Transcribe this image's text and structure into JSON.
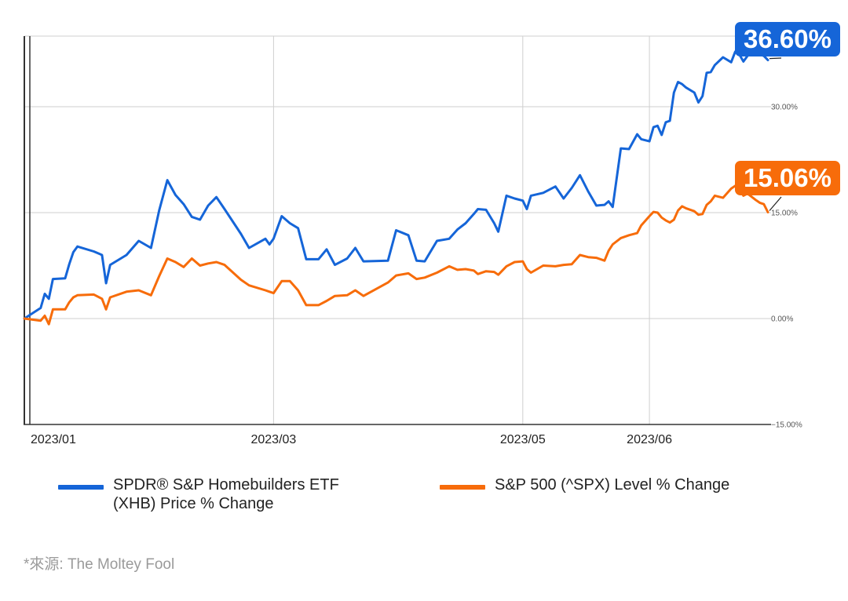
{
  "chart_data": {
    "type": "line",
    "title": "",
    "xlabel": "",
    "ylabel": "",
    "ylim": [
      -15,
      40
    ],
    "y_ticks": [
      {
        "value": 30,
        "label": "30.00%"
      },
      {
        "value": 15,
        "label": "15.00%"
      },
      {
        "value": 0,
        "label": "0.00%"
      },
      {
        "value": -15,
        "label": "−15.00%"
      }
    ],
    "x_ticks": [
      {
        "date": "2023-01-03",
        "label": "2023/01"
      },
      {
        "date": "2023-03-01",
        "label": "2023/03"
      },
      {
        "date": "2023-05-01",
        "label": "2023/05"
      },
      {
        "date": "2023-06-01",
        "label": "2023/06"
      }
    ],
    "x_range": [
      "2022-12-30",
      "2023-06-30"
    ],
    "grid": true,
    "legend_position": "bottom",
    "series": [
      {
        "name": "SPDR® S&P Homebuilders ETF (XHB) Price % Change",
        "color": "#1565D8",
        "end_label": "36.60%",
        "points": [
          [
            "2022-12-30",
            0.0
          ],
          [
            "2023-01-03",
            1.5
          ],
          [
            "2023-01-04",
            3.5
          ],
          [
            "2023-01-05",
            2.8
          ],
          [
            "2023-01-06",
            5.6
          ],
          [
            "2023-01-09",
            5.7
          ],
          [
            "2023-01-10",
            7.7
          ],
          [
            "2023-01-11",
            9.4
          ],
          [
            "2023-01-12",
            10.2
          ],
          [
            "2023-01-16",
            9.5
          ],
          [
            "2023-01-18",
            9.0
          ],
          [
            "2023-01-19",
            5.0
          ],
          [
            "2023-01-20",
            7.6
          ],
          [
            "2023-01-24",
            9.0
          ],
          [
            "2023-01-27",
            11.0
          ],
          [
            "2023-01-30",
            10.0
          ],
          [
            "2023-02-01",
            15.3
          ],
          [
            "2023-02-03",
            19.6
          ],
          [
            "2023-02-05",
            17.5
          ],
          [
            "2023-02-07",
            16.2
          ],
          [
            "2023-02-09",
            14.4
          ],
          [
            "2023-02-11",
            14.0
          ],
          [
            "2023-02-13",
            16.0
          ],
          [
            "2023-02-15",
            17.2
          ],
          [
            "2023-02-17",
            15.5
          ],
          [
            "2023-02-21",
            12.0
          ],
          [
            "2023-02-23",
            10.0
          ],
          [
            "2023-02-27",
            11.3
          ],
          [
            "2023-02-28",
            10.5
          ],
          [
            "2023-03-01",
            11.3
          ],
          [
            "2023-03-03",
            14.5
          ],
          [
            "2023-03-05",
            13.5
          ],
          [
            "2023-03-07",
            12.8
          ],
          [
            "2023-03-09",
            8.4
          ],
          [
            "2023-03-12",
            8.4
          ],
          [
            "2023-03-14",
            9.8
          ],
          [
            "2023-03-16",
            7.6
          ],
          [
            "2023-03-19",
            8.5
          ],
          [
            "2023-03-21",
            10.0
          ],
          [
            "2023-03-23",
            8.1
          ],
          [
            "2023-03-29",
            8.2
          ],
          [
            "2023-03-31",
            12.5
          ],
          [
            "2023-04-03",
            11.8
          ],
          [
            "2023-04-05",
            8.2
          ],
          [
            "2023-04-07",
            8.1
          ],
          [
            "2023-04-10",
            11.0
          ],
          [
            "2023-04-13",
            11.3
          ],
          [
            "2023-04-15",
            12.6
          ],
          [
            "2023-04-17",
            13.5
          ],
          [
            "2023-04-19",
            14.8
          ],
          [
            "2023-04-20",
            15.5
          ],
          [
            "2023-04-22",
            15.4
          ],
          [
            "2023-04-24",
            13.5
          ],
          [
            "2023-04-25",
            12.3
          ],
          [
            "2023-04-27",
            17.4
          ],
          [
            "2023-04-29",
            17.0
          ],
          [
            "2023-05-01",
            16.7
          ],
          [
            "2023-05-02",
            15.5
          ],
          [
            "2023-05-03",
            17.4
          ],
          [
            "2023-05-06",
            17.8
          ],
          [
            "2023-05-09",
            18.7
          ],
          [
            "2023-05-11",
            17.0
          ],
          [
            "2023-05-13",
            18.5
          ],
          [
            "2023-05-15",
            20.3
          ],
          [
            "2023-05-17",
            18.0
          ],
          [
            "2023-05-19",
            16.0
          ],
          [
            "2023-05-21",
            16.1
          ],
          [
            "2023-05-22",
            16.6
          ],
          [
            "2023-05-23",
            15.8
          ],
          [
            "2023-05-25",
            24.1
          ],
          [
            "2023-05-27",
            24.0
          ],
          [
            "2023-05-29",
            26.1
          ],
          [
            "2023-05-30",
            25.4
          ],
          [
            "2023-06-01",
            25.1
          ],
          [
            "2023-06-02",
            27.1
          ],
          [
            "2023-06-03",
            27.3
          ],
          [
            "2023-06-04",
            26.0
          ],
          [
            "2023-06-05",
            27.8
          ],
          [
            "2023-06-06",
            28.0
          ],
          [
            "2023-06-07",
            32.0
          ],
          [
            "2023-06-08",
            33.5
          ],
          [
            "2023-06-09",
            33.2
          ],
          [
            "2023-06-10",
            32.7
          ],
          [
            "2023-06-12",
            32.0
          ],
          [
            "2023-06-13",
            30.6
          ],
          [
            "2023-06-14",
            31.5
          ],
          [
            "2023-06-15",
            34.8
          ],
          [
            "2023-06-16",
            34.9
          ],
          [
            "2023-06-17",
            35.9
          ],
          [
            "2023-06-19",
            37.0
          ],
          [
            "2023-06-21",
            36.3
          ],
          [
            "2023-06-22",
            37.8
          ],
          [
            "2023-06-23",
            37.4
          ],
          [
            "2023-06-24",
            36.4
          ],
          [
            "2023-06-25",
            37.2
          ],
          [
            "2023-06-27",
            38.0
          ],
          [
            "2023-06-28",
            37.4
          ],
          [
            "2023-06-29",
            37.2
          ],
          [
            "2023-06-30",
            36.6
          ]
        ]
      },
      {
        "name": "S&P 500 (^SPX) Level % Change",
        "color": "#F76C0A",
        "end_label": "15.06%",
        "points": [
          [
            "2022-12-30",
            0.0
          ],
          [
            "2023-01-03",
            -0.3
          ],
          [
            "2023-01-04",
            0.4
          ],
          [
            "2023-01-05",
            -0.8
          ],
          [
            "2023-01-06",
            1.3
          ],
          [
            "2023-01-09",
            1.3
          ],
          [
            "2023-01-10",
            2.3
          ],
          [
            "2023-01-11",
            3.0
          ],
          [
            "2023-01-12",
            3.3
          ],
          [
            "2023-01-16",
            3.4
          ],
          [
            "2023-01-18",
            2.8
          ],
          [
            "2023-01-19",
            1.3
          ],
          [
            "2023-01-20",
            3.0
          ],
          [
            "2023-01-24",
            3.8
          ],
          [
            "2023-01-27",
            4.0
          ],
          [
            "2023-01-30",
            3.3
          ],
          [
            "2023-02-01",
            6.0
          ],
          [
            "2023-02-03",
            8.5
          ],
          [
            "2023-02-05",
            8.0
          ],
          [
            "2023-02-07",
            7.3
          ],
          [
            "2023-02-09",
            8.5
          ],
          [
            "2023-02-11",
            7.5
          ],
          [
            "2023-02-13",
            7.8
          ],
          [
            "2023-02-15",
            8.0
          ],
          [
            "2023-02-17",
            7.6
          ],
          [
            "2023-02-21",
            5.5
          ],
          [
            "2023-02-23",
            4.7
          ],
          [
            "2023-02-27",
            4.0
          ],
          [
            "2023-02-28",
            3.8
          ],
          [
            "2023-03-01",
            3.6
          ],
          [
            "2023-03-03",
            5.3
          ],
          [
            "2023-03-05",
            5.3
          ],
          [
            "2023-03-07",
            4.0
          ],
          [
            "2023-03-09",
            1.9
          ],
          [
            "2023-03-12",
            1.9
          ],
          [
            "2023-03-14",
            2.5
          ],
          [
            "2023-03-16",
            3.2
          ],
          [
            "2023-03-19",
            3.3
          ],
          [
            "2023-03-21",
            4.0
          ],
          [
            "2023-03-23",
            3.2
          ],
          [
            "2023-03-29",
            5.1
          ],
          [
            "2023-03-31",
            6.1
          ],
          [
            "2023-04-03",
            6.4
          ],
          [
            "2023-04-05",
            5.6
          ],
          [
            "2023-04-07",
            5.8
          ],
          [
            "2023-04-10",
            6.5
          ],
          [
            "2023-04-13",
            7.4
          ],
          [
            "2023-04-15",
            6.9
          ],
          [
            "2023-04-17",
            7.0
          ],
          [
            "2023-04-19",
            6.8
          ],
          [
            "2023-04-20",
            6.3
          ],
          [
            "2023-04-22",
            6.7
          ],
          [
            "2023-04-24",
            6.6
          ],
          [
            "2023-04-25",
            6.2
          ],
          [
            "2023-04-27",
            7.4
          ],
          [
            "2023-04-29",
            8.0
          ],
          [
            "2023-05-01",
            8.1
          ],
          [
            "2023-05-02",
            7.0
          ],
          [
            "2023-05-03",
            6.5
          ],
          [
            "2023-05-06",
            7.5
          ],
          [
            "2023-05-09",
            7.4
          ],
          [
            "2023-05-11",
            7.6
          ],
          [
            "2023-05-13",
            7.7
          ],
          [
            "2023-05-15",
            9.0
          ],
          [
            "2023-05-17",
            8.7
          ],
          [
            "2023-05-19",
            8.6
          ],
          [
            "2023-05-21",
            8.2
          ],
          [
            "2023-05-22",
            9.6
          ],
          [
            "2023-05-23",
            10.5
          ],
          [
            "2023-05-25",
            11.4
          ],
          [
            "2023-05-27",
            11.8
          ],
          [
            "2023-05-29",
            12.1
          ],
          [
            "2023-05-30",
            13.2
          ],
          [
            "2023-06-01",
            14.5
          ],
          [
            "2023-06-02",
            15.1
          ],
          [
            "2023-06-03",
            15.0
          ],
          [
            "2023-06-04",
            14.3
          ],
          [
            "2023-06-05",
            13.9
          ],
          [
            "2023-06-06",
            13.6
          ],
          [
            "2023-06-07",
            14.0
          ],
          [
            "2023-06-08",
            15.3
          ],
          [
            "2023-06-09",
            15.9
          ],
          [
            "2023-06-10",
            15.6
          ],
          [
            "2023-06-12",
            15.2
          ],
          [
            "2023-06-13",
            14.7
          ],
          [
            "2023-06-14",
            14.8
          ],
          [
            "2023-06-15",
            16.1
          ],
          [
            "2023-06-16",
            16.6
          ],
          [
            "2023-06-17",
            17.4
          ],
          [
            "2023-06-19",
            17.1
          ],
          [
            "2023-06-21",
            18.4
          ],
          [
            "2023-06-22",
            18.8
          ],
          [
            "2023-06-23",
            18.5
          ],
          [
            "2023-06-24",
            17.4
          ],
          [
            "2023-06-25",
            17.7
          ],
          [
            "2023-06-27",
            16.8
          ],
          [
            "2023-06-28",
            16.4
          ],
          [
            "2023-06-29",
            16.2
          ],
          [
            "2023-06-30",
            15.06
          ]
        ]
      }
    ]
  },
  "legend": {
    "blue_label": "SPDR® S&P Homebuilders ETF (XHB) Price % Change",
    "orange_label": "S&P 500 (^SPX) Level % Change"
  },
  "source": "*來源: The Moltey Fool"
}
